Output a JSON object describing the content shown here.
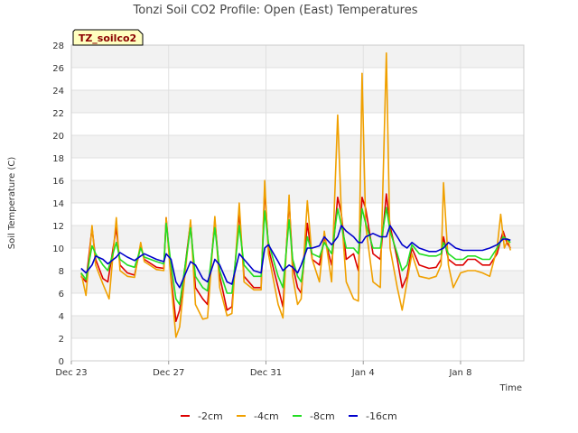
{
  "chart_data": {
    "type": "line",
    "title": "Tonzi Soil CO2 Profile: Open (East) Temperatures",
    "xlabel": "Time",
    "ylabel": "Soil Temperature (C)",
    "tag": "TZ_soilco2",
    "ylim": [
      0,
      28
    ],
    "yticks": [
      0,
      2,
      4,
      6,
      8,
      10,
      12,
      14,
      16,
      18,
      20,
      22,
      24,
      26,
      28
    ],
    "xlim": [
      0,
      18.6
    ],
    "xticks": [
      {
        "value": 0,
        "label": "Dec 23"
      },
      {
        "value": 4,
        "label": "Dec 27"
      },
      {
        "value": 8,
        "label": "Dec 31"
      },
      {
        "value": 12,
        "label": "Jan 4"
      },
      {
        "value": 16,
        "label": "Jan 8"
      }
    ],
    "grid": true,
    "legend_position": "bottom",
    "series": [
      {
        "name": "-2cm",
        "color": "#dd0000",
        "points": [
          [
            0.4,
            7.5
          ],
          [
            0.6,
            7.0
          ],
          [
            0.85,
            11.8
          ],
          [
            1.0,
            9.0
          ],
          [
            1.3,
            7.3
          ],
          [
            1.5,
            7.0
          ],
          [
            1.85,
            11.8
          ],
          [
            2.0,
            8.5
          ],
          [
            2.3,
            7.8
          ],
          [
            2.6,
            7.6
          ],
          [
            2.85,
            10.2
          ],
          [
            3.0,
            9.0
          ],
          [
            3.5,
            8.3
          ],
          [
            3.8,
            8.2
          ],
          [
            3.9,
            12.7
          ],
          [
            4.1,
            7.5
          ],
          [
            4.3,
            3.5
          ],
          [
            4.45,
            4.5
          ],
          [
            4.9,
            12.3
          ],
          [
            5.1,
            6.5
          ],
          [
            5.4,
            5.5
          ],
          [
            5.6,
            5.0
          ],
          [
            5.9,
            12.5
          ],
          [
            6.1,
            7.5
          ],
          [
            6.4,
            4.5
          ],
          [
            6.6,
            4.8
          ],
          [
            6.9,
            13.2
          ],
          [
            7.1,
            7.5
          ],
          [
            7.5,
            6.5
          ],
          [
            7.8,
            6.5
          ],
          [
            7.95,
            15.3
          ],
          [
            8.1,
            10.0
          ],
          [
            8.5,
            6.5
          ],
          [
            8.7,
            4.8
          ],
          [
            8.95,
            14.2
          ],
          [
            9.1,
            8.5
          ],
          [
            9.3,
            6.5
          ],
          [
            9.45,
            6.0
          ],
          [
            9.7,
            12.2
          ],
          [
            9.9,
            9.0
          ],
          [
            10.2,
            8.5
          ],
          [
            10.4,
            11.0
          ],
          [
            10.7,
            8.5
          ],
          [
            10.95,
            14.5
          ],
          [
            11.1,
            13.0
          ],
          [
            11.3,
            9.0
          ],
          [
            11.6,
            9.5
          ],
          [
            11.8,
            8.0
          ],
          [
            11.95,
            14.5
          ],
          [
            12.1,
            13.5
          ],
          [
            12.4,
            9.5
          ],
          [
            12.7,
            9.0
          ],
          [
            12.95,
            14.8
          ],
          [
            13.1,
            12.0
          ],
          [
            13.4,
            9.0
          ],
          [
            13.6,
            6.5
          ],
          [
            13.8,
            7.5
          ],
          [
            14.0,
            10.0
          ],
          [
            14.3,
            8.5
          ],
          [
            14.7,
            8.2
          ],
          [
            15.0,
            8.3
          ],
          [
            15.2,
            9.0
          ],
          [
            15.3,
            11.0
          ],
          [
            15.5,
            9.0
          ],
          [
            15.8,
            8.5
          ],
          [
            16.1,
            8.5
          ],
          [
            16.3,
            9.0
          ],
          [
            16.6,
            9.0
          ],
          [
            16.9,
            8.5
          ],
          [
            17.2,
            8.5
          ],
          [
            17.5,
            9.5
          ],
          [
            17.75,
            11.5
          ],
          [
            17.9,
            10.5
          ],
          [
            18.05,
            10.0
          ]
        ]
      },
      {
        "name": "-4cm",
        "color": "#f0a000",
        "points": [
          [
            0.4,
            7.8
          ],
          [
            0.6,
            5.8
          ],
          [
            0.85,
            12.0
          ],
          [
            1.0,
            8.5
          ],
          [
            1.3,
            6.8
          ],
          [
            1.55,
            5.5
          ],
          [
            1.85,
            12.7
          ],
          [
            2.0,
            8.0
          ],
          [
            2.3,
            7.5
          ],
          [
            2.6,
            7.4
          ],
          [
            2.85,
            10.5
          ],
          [
            3.0,
            8.8
          ],
          [
            3.5,
            8.1
          ],
          [
            3.8,
            8.0
          ],
          [
            3.9,
            12.7
          ],
          [
            4.1,
            7.0
          ],
          [
            4.3,
            2.1
          ],
          [
            4.45,
            3.0
          ],
          [
            4.9,
            12.5
          ],
          [
            5.1,
            5.0
          ],
          [
            5.4,
            3.7
          ],
          [
            5.6,
            3.8
          ],
          [
            5.9,
            12.8
          ],
          [
            6.1,
            6.5
          ],
          [
            6.4,
            4.0
          ],
          [
            6.6,
            4.2
          ],
          [
            6.9,
            14.0
          ],
          [
            7.1,
            7.0
          ],
          [
            7.5,
            6.3
          ],
          [
            7.8,
            6.3
          ],
          [
            7.95,
            16.0
          ],
          [
            8.1,
            9.5
          ],
          [
            8.5,
            5.0
          ],
          [
            8.7,
            3.8
          ],
          [
            8.95,
            14.7
          ],
          [
            9.1,
            7.5
          ],
          [
            9.3,
            5.0
          ],
          [
            9.45,
            5.5
          ],
          [
            9.7,
            14.2
          ],
          [
            9.9,
            9.0
          ],
          [
            10.2,
            7.0
          ],
          [
            10.4,
            11.5
          ],
          [
            10.7,
            7.0
          ],
          [
            10.95,
            21.8
          ],
          [
            11.1,
            13.0
          ],
          [
            11.3,
            7.0
          ],
          [
            11.6,
            5.5
          ],
          [
            11.8,
            5.3
          ],
          [
            11.95,
            25.5
          ],
          [
            12.1,
            12.0
          ],
          [
            12.4,
            7.0
          ],
          [
            12.7,
            6.5
          ],
          [
            12.95,
            27.3
          ],
          [
            13.1,
            10.0
          ],
          [
            13.4,
            6.5
          ],
          [
            13.6,
            4.5
          ],
          [
            13.8,
            7.0
          ],
          [
            14.0,
            9.5
          ],
          [
            14.3,
            7.5
          ],
          [
            14.7,
            7.3
          ],
          [
            15.0,
            7.5
          ],
          [
            15.2,
            8.5
          ],
          [
            15.3,
            15.8
          ],
          [
            15.5,
            8.5
          ],
          [
            15.7,
            6.5
          ],
          [
            16.0,
            7.8
          ],
          [
            16.3,
            8.0
          ],
          [
            16.6,
            8.0
          ],
          [
            16.9,
            7.8
          ],
          [
            17.2,
            7.5
          ],
          [
            17.5,
            10.0
          ],
          [
            17.65,
            13.0
          ],
          [
            17.8,
            10.0
          ],
          [
            17.95,
            10.8
          ],
          [
            18.05,
            9.8
          ]
        ]
      },
      {
        "name": "-8cm",
        "color": "#22dd22",
        "points": [
          [
            0.4,
            7.8
          ],
          [
            0.6,
            7.2
          ],
          [
            0.85,
            10.2
          ],
          [
            1.0,
            9.5
          ],
          [
            1.3,
            8.5
          ],
          [
            1.5,
            8.0
          ],
          [
            1.85,
            10.5
          ],
          [
            2.0,
            9.0
          ],
          [
            2.3,
            8.5
          ],
          [
            2.6,
            8.3
          ],
          [
            2.85,
            10.0
          ],
          [
            3.0,
            9.2
          ],
          [
            3.5,
            8.8
          ],
          [
            3.8,
            8.6
          ],
          [
            3.9,
            12.2
          ],
          [
            4.1,
            8.5
          ],
          [
            4.3,
            5.5
          ],
          [
            4.45,
            5.0
          ],
          [
            4.9,
            11.8
          ],
          [
            5.1,
            7.5
          ],
          [
            5.4,
            6.5
          ],
          [
            5.6,
            6.2
          ],
          [
            5.9,
            11.8
          ],
          [
            6.1,
            8.0
          ],
          [
            6.4,
            6.0
          ],
          [
            6.6,
            6.0
          ],
          [
            6.9,
            12.0
          ],
          [
            7.1,
            8.5
          ],
          [
            7.5,
            7.5
          ],
          [
            7.8,
            7.5
          ],
          [
            7.95,
            13.3
          ],
          [
            8.1,
            10.5
          ],
          [
            8.5,
            7.5
          ],
          [
            8.7,
            6.5
          ],
          [
            8.95,
            12.5
          ],
          [
            9.1,
            9.0
          ],
          [
            9.3,
            7.5
          ],
          [
            9.45,
            7.0
          ],
          [
            9.7,
            11.0
          ],
          [
            9.9,
            9.5
          ],
          [
            10.2,
            9.2
          ],
          [
            10.4,
            10.5
          ],
          [
            10.7,
            9.5
          ],
          [
            10.95,
            13.5
          ],
          [
            11.1,
            12.0
          ],
          [
            11.3,
            10.0
          ],
          [
            11.6,
            10.0
          ],
          [
            11.8,
            9.5
          ],
          [
            11.95,
            13.5
          ],
          [
            12.1,
            12.2
          ],
          [
            12.4,
            10.0
          ],
          [
            12.7,
            10.0
          ],
          [
            12.95,
            13.6
          ],
          [
            13.1,
            11.5
          ],
          [
            13.4,
            9.5
          ],
          [
            13.6,
            8.0
          ],
          [
            13.8,
            8.5
          ],
          [
            14.0,
            10.3
          ],
          [
            14.3,
            9.5
          ],
          [
            14.7,
            9.3
          ],
          [
            15.0,
            9.3
          ],
          [
            15.2,
            9.5
          ],
          [
            15.3,
            10.5
          ],
          [
            15.5,
            9.5
          ],
          [
            15.8,
            9.0
          ],
          [
            16.1,
            9.0
          ],
          [
            16.3,
            9.3
          ],
          [
            16.6,
            9.3
          ],
          [
            16.9,
            9.0
          ],
          [
            17.2,
            9.0
          ],
          [
            17.5,
            10.0
          ],
          [
            17.75,
            11.0
          ],
          [
            17.9,
            10.8
          ],
          [
            18.05,
            10.5
          ]
        ]
      },
      {
        "name": "-16cm",
        "color": "#0000cc",
        "points": [
          [
            0.4,
            8.2
          ],
          [
            0.6,
            7.8
          ],
          [
            0.85,
            8.5
          ],
          [
            1.0,
            9.3
          ],
          [
            1.3,
            9.0
          ],
          [
            1.5,
            8.6
          ],
          [
            1.85,
            9.2
          ],
          [
            2.0,
            9.6
          ],
          [
            2.3,
            9.2
          ],
          [
            2.6,
            8.9
          ],
          [
            2.85,
            9.3
          ],
          [
            3.0,
            9.5
          ],
          [
            3.5,
            9.0
          ],
          [
            3.8,
            8.8
          ],
          [
            3.9,
            9.5
          ],
          [
            4.1,
            9.0
          ],
          [
            4.3,
            7.0
          ],
          [
            4.45,
            6.5
          ],
          [
            4.9,
            8.8
          ],
          [
            5.1,
            8.5
          ],
          [
            5.4,
            7.3
          ],
          [
            5.6,
            7.0
          ],
          [
            5.9,
            9.0
          ],
          [
            6.1,
            8.5
          ],
          [
            6.4,
            7.0
          ],
          [
            6.6,
            6.8
          ],
          [
            6.9,
            9.5
          ],
          [
            7.1,
            9.0
          ],
          [
            7.5,
            8.0
          ],
          [
            7.8,
            7.8
          ],
          [
            7.95,
            10.0
          ],
          [
            8.1,
            10.3
          ],
          [
            8.5,
            8.8
          ],
          [
            8.7,
            8.0
          ],
          [
            8.95,
            8.5
          ],
          [
            9.1,
            8.3
          ],
          [
            9.3,
            7.8
          ],
          [
            9.45,
            8.5
          ],
          [
            9.7,
            10.0
          ],
          [
            9.9,
            10.0
          ],
          [
            10.2,
            10.2
          ],
          [
            10.4,
            11.0
          ],
          [
            10.7,
            10.3
          ],
          [
            10.95,
            11.0
          ],
          [
            11.1,
            12.0
          ],
          [
            11.3,
            11.5
          ],
          [
            11.6,
            11.0
          ],
          [
            11.8,
            10.5
          ],
          [
            11.95,
            10.5
          ],
          [
            12.1,
            11.0
          ],
          [
            12.4,
            11.3
          ],
          [
            12.7,
            11.0
          ],
          [
            12.95,
            11.0
          ],
          [
            13.1,
            12.0
          ],
          [
            13.4,
            11.0
          ],
          [
            13.6,
            10.3
          ],
          [
            13.8,
            10.0
          ],
          [
            14.0,
            10.5
          ],
          [
            14.3,
            10.0
          ],
          [
            14.7,
            9.7
          ],
          [
            15.0,
            9.7
          ],
          [
            15.2,
            9.9
          ],
          [
            15.3,
            10.0
          ],
          [
            15.5,
            10.5
          ],
          [
            15.8,
            10.0
          ],
          [
            16.1,
            9.8
          ],
          [
            16.3,
            9.8
          ],
          [
            16.6,
            9.8
          ],
          [
            16.9,
            9.8
          ],
          [
            17.2,
            10.0
          ],
          [
            17.5,
            10.3
          ],
          [
            17.75,
            10.8
          ],
          [
            17.9,
            10.8
          ],
          [
            18.05,
            10.7
          ]
        ]
      }
    ]
  }
}
